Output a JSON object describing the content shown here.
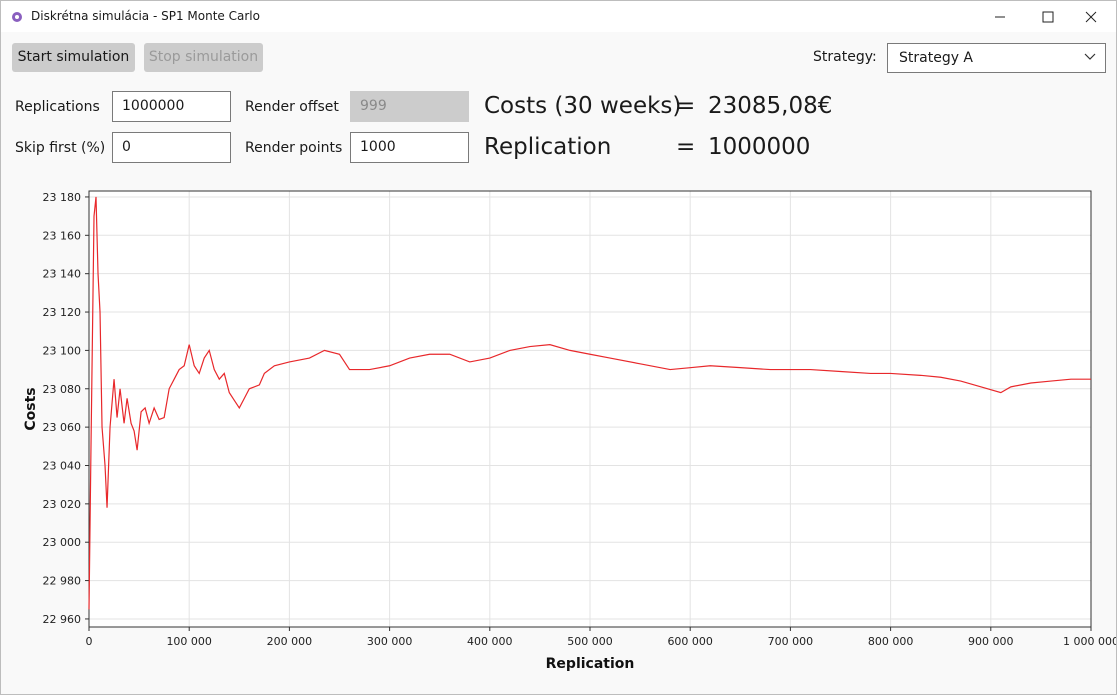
{
  "window": {
    "title": "Diskrétna simulácia - SP1 Monte Carlo"
  },
  "toolbar": {
    "start_button": "Start simulation",
    "stop_button": "Stop simulation",
    "strategy_label": "Strategy:",
    "strategy_value": "Strategy A"
  },
  "settings": {
    "replications_label": "Replications",
    "replications_value": "1000000",
    "render_offset_label": "Render offset",
    "render_offset_value": "999",
    "skip_first_label": "Skip first (%)",
    "skip_first_value": "0",
    "render_points_label": "Render points",
    "render_points_value": "1000"
  },
  "results": {
    "costs_label": "Costs (30 weeks)",
    "costs_equals": "=",
    "costs_value": "23085,08€",
    "replication_label": "Replication",
    "replication_equals": "=",
    "replication_value": "1000000"
  },
  "chart_data": {
    "type": "line",
    "x_label": "Replication",
    "y_label": "Costs",
    "color": "#e8282b",
    "grid": true,
    "x": [
      0,
      2000,
      5000,
      7000,
      9000,
      11000,
      13000,
      16000,
      18000,
      21000,
      25000,
      28000,
      31000,
      35000,
      38000,
      42000,
      45000,
      48000,
      52000,
      56000,
      60000,
      65000,
      70000,
      75000,
      80000,
      85000,
      90000,
      95000,
      100000,
      105000,
      110000,
      115000,
      120000,
      125000,
      130000,
      135000,
      140000,
      145000,
      150000,
      155000,
      160000,
      170000,
      175000,
      185000,
      200000,
      220000,
      235000,
      250000,
      260000,
      280000,
      300000,
      320000,
      340000,
      360000,
      380000,
      400000,
      420000,
      440000,
      460000,
      480000,
      500000,
      520000,
      550000,
      580000,
      600000,
      620000,
      650000,
      680000,
      700000,
      720000,
      750000,
      780000,
      800000,
      830000,
      850000,
      870000,
      890000,
      910000,
      920000,
      940000,
      960000,
      980000,
      1000000
    ],
    "values": [
      22965,
      23050,
      23170,
      23180,
      23140,
      23120,
      23060,
      23040,
      23018,
      23060,
      23085,
      23065,
      23080,
      23062,
      23075,
      23062,
      23058,
      23048,
      23068,
      23070,
      23062,
      23070,
      23064,
      23065,
      23080,
      23085,
      23090,
      23092,
      23103,
      23092,
      23088,
      23096,
      23100,
      23090,
      23085,
      23088,
      23078,
      23074,
      23070,
      23075,
      23080,
      23082,
      23088,
      23092,
      23094,
      23096,
      23100,
      23098,
      23090,
      23090,
      23092,
      23096,
      23098,
      23098,
      23094,
      23096,
      23100,
      23102,
      23103,
      23100,
      23098,
      23096,
      23093,
      23090,
      23091,
      23092,
      23091,
      23090,
      23090,
      23090,
      23089,
      23088,
      23088,
      23087,
      23086,
      23084,
      23081,
      23078,
      23081,
      23083,
      23084,
      23085,
      23085
    ],
    "xlim": [
      0,
      1000000
    ],
    "ylim": [
      22955.8,
      23183.1
    ],
    "xticks": [
      0,
      {
        "value": 100000,
        "label": "100 000"
      },
      {
        "value": 200000,
        "label": "200 000"
      },
      {
        "value": 300000,
        "label": "300 000"
      },
      {
        "value": 400000,
        "label": "400 000"
      },
      {
        "value": 500000,
        "label": "500 000"
      },
      {
        "value": 600000,
        "label": "600 000"
      },
      {
        "value": 700000,
        "label": "700 000"
      },
      {
        "value": 800000,
        "label": "800 000"
      },
      {
        "value": 900000,
        "label": "900 000"
      },
      {
        "value": 1000000,
        "label": "1 000 000"
      }
    ],
    "yticks": [
      {
        "value": 22960,
        "label": "22 960"
      },
      {
        "value": 22980,
        "label": "22 980"
      },
      {
        "value": 23000,
        "label": "23 000"
      },
      {
        "value": 23020,
        "label": "23 020"
      },
      {
        "value": 23040,
        "label": "23 040"
      },
      {
        "value": 23060,
        "label": "23 060"
      },
      {
        "value": 23080,
        "label": "23 080"
      },
      {
        "value": 23100,
        "label": "23 100"
      },
      {
        "value": 23120,
        "label": "23 120"
      },
      {
        "value": 23140,
        "label": "23 140"
      },
      {
        "value": 23160,
        "label": "23 160"
      },
      {
        "value": 23180,
        "label": "23 180"
      }
    ]
  }
}
